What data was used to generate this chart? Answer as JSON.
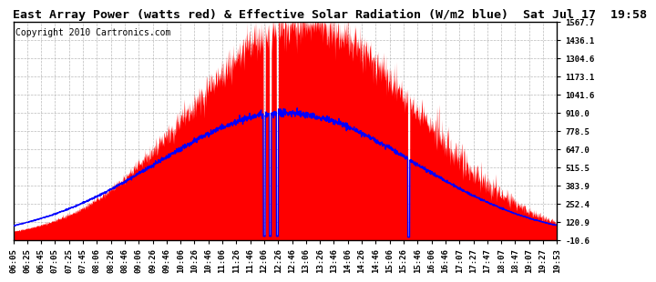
{
  "title": "East Array Power (watts red) & Effective Solar Radiation (W/m2 blue)  Sat Jul 17  19:58",
  "copyright": "Copyright 2010 Cartronics.com",
  "background_color": "#ffffff",
  "plot_bg_color": "#ffffff",
  "y_ticks": [
    -10.6,
    120.9,
    252.4,
    383.9,
    515.5,
    647.0,
    778.5,
    910.0,
    1041.6,
    1173.1,
    1304.6,
    1436.1,
    1567.7
  ],
  "y_min": -10.6,
  "y_max": 1567.7,
  "x_labels": [
    "06:05",
    "06:25",
    "06:45",
    "07:05",
    "07:25",
    "07:45",
    "08:06",
    "08:26",
    "08:46",
    "09:06",
    "09:26",
    "09:46",
    "10:06",
    "10:26",
    "10:46",
    "11:06",
    "11:26",
    "11:46",
    "12:06",
    "12:26",
    "12:46",
    "13:06",
    "13:26",
    "13:46",
    "14:06",
    "14:26",
    "14:46",
    "15:06",
    "15:26",
    "15:46",
    "16:06",
    "16:46",
    "17:07",
    "17:27",
    "17:47",
    "18:07",
    "18:47",
    "19:07",
    "19:27",
    "19:53"
  ],
  "red_fill_color": "#ff0000",
  "blue_line_color": "#0000ff",
  "grid_color": "#aaaaaa",
  "title_fontsize": 9.5,
  "tick_fontsize": 6.5,
  "copyright_fontsize": 7
}
